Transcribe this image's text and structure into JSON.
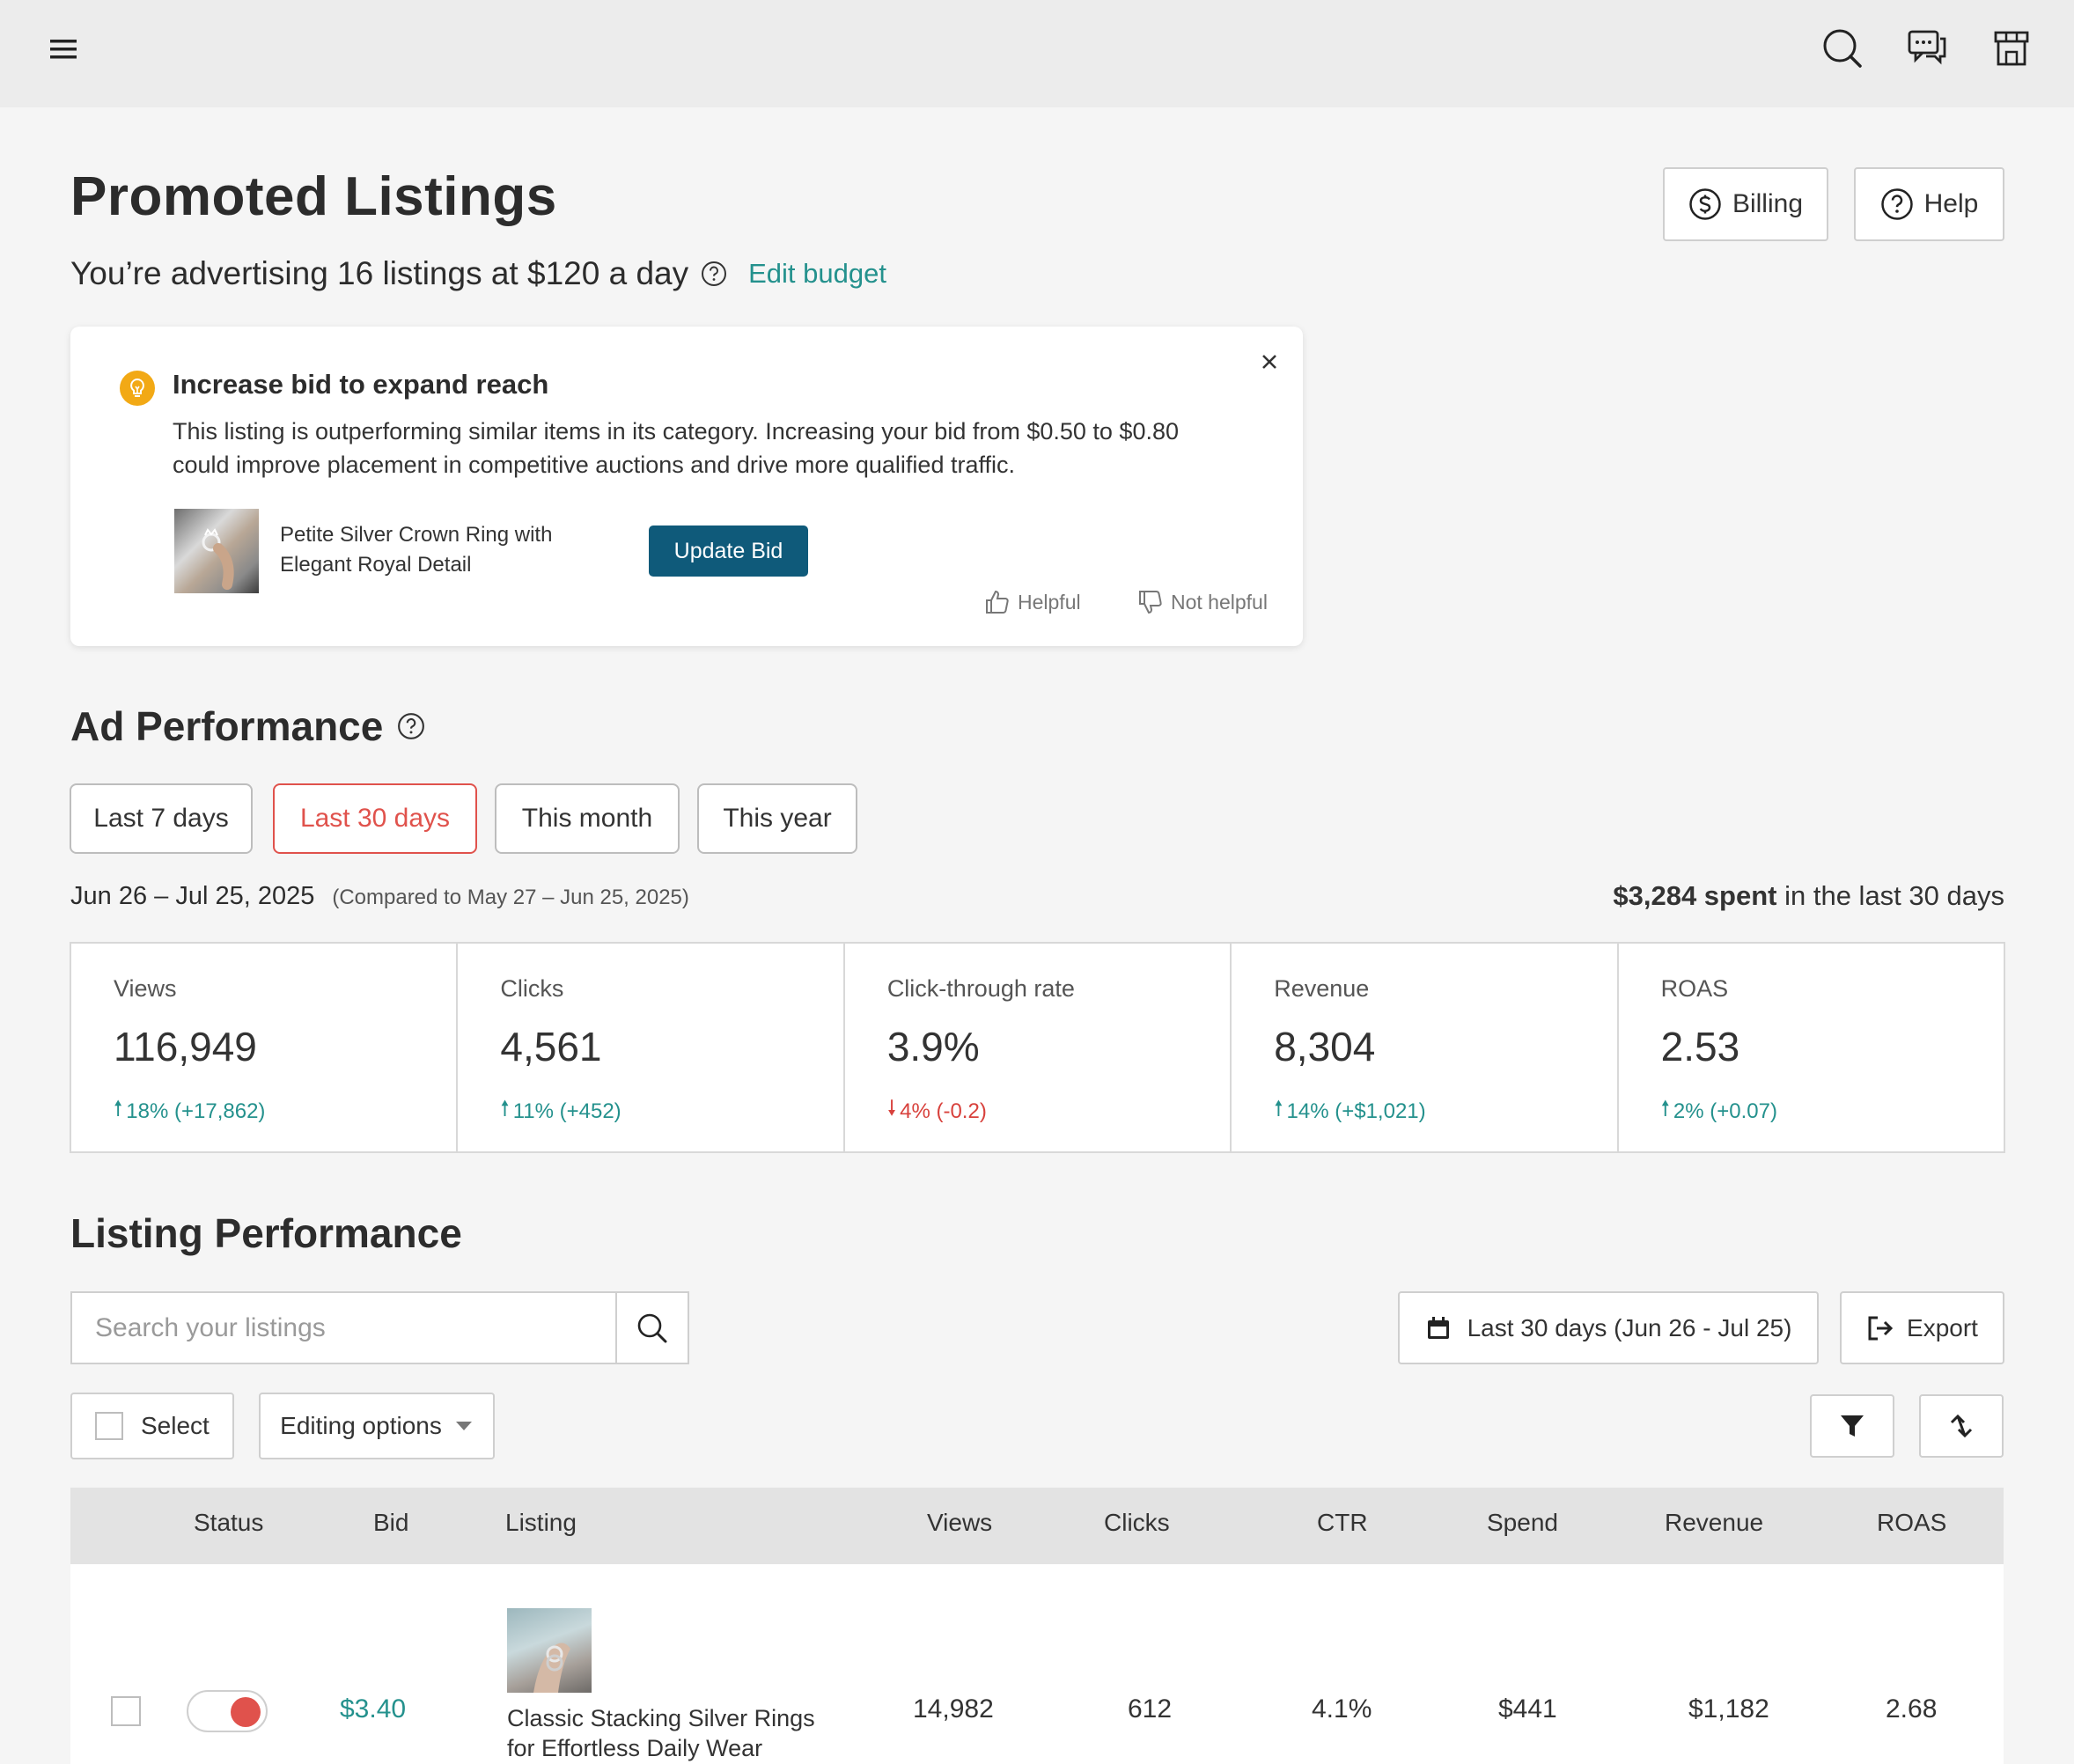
{
  "topbar": {
    "menu_icon": "hamburger-icon",
    "search_icon": "search-icon",
    "messages_icon": "chat-icon",
    "shop_icon": "shop-icon"
  },
  "header": {
    "title": "Promoted Listings",
    "subtitle": "You’re advertising 16 listings at $120 a day",
    "edit_budget": "Edit budget",
    "billing": "Billing",
    "help": "Help"
  },
  "tip": {
    "title": "Increase bid to expand reach",
    "body_line1": "This listing is outperforming similar items in its category. Increasing your bid from $0.50 to $0.80",
    "body_line2": "could improve placement in competitive auctions and drive more qualified traffic.",
    "listing_line1": "Petite Silver Crown Ring with",
    "listing_line2": "Elegant Royal Detail",
    "update_bid": "Update Bid",
    "helpful": "Helpful",
    "not_helpful": "Not helpful",
    "accent": "#f2a915"
  },
  "ad_performance": {
    "title": "Ad Performance",
    "ranges": [
      "Last 7 days",
      "Last 30 days",
      "This month",
      "This year"
    ],
    "active_range": "Last 30 days",
    "date_range": "Jun 26 – Jul 25, 2025",
    "compared": "(Compared to May 27 – Jun 25, 2025)",
    "spent_amount": "$3,284 spent",
    "spent_suffix": "in the last 30 days",
    "stats": [
      {
        "label": "Views",
        "value": "116,949",
        "change": "18% (+17,862)",
        "direction": "up"
      },
      {
        "label": "Clicks",
        "value": "4,561",
        "change": "11% (+452)",
        "direction": "up"
      },
      {
        "label": "Click-through rate",
        "value": "3.9%",
        "change": "4% (-0.2)",
        "direction": "down"
      },
      {
        "label": "Revenue",
        "value": "8,304",
        "change": "14% (+$1,021)",
        "direction": "up"
      },
      {
        "label": "ROAS",
        "value": "2.53",
        "change": "2% (+0.07)",
        "direction": "up"
      }
    ]
  },
  "listing_performance": {
    "title": "Listing Performance",
    "search_placeholder": "Search your listings",
    "date_filter": "Last 30 days (Jun 26 - Jul 25)",
    "export": "Export",
    "select": "Select",
    "editing_options": "Editing options",
    "columns": [
      "Status",
      "Bid",
      "Listing",
      "Views",
      "Clicks",
      "CTR",
      "Spend",
      "Revenue",
      "ROAS"
    ],
    "rows": [
      {
        "status_on": true,
        "bid": "$3.40",
        "listing_line1": "Classic Stacking Silver Rings",
        "listing_line2": "for Effortless Daily Wear",
        "views": "14,982",
        "clicks": "612",
        "ctr": "4.1%",
        "spend": "$441",
        "revenue": "$1,182",
        "roas": "2.68"
      }
    ]
  },
  "colors": {
    "accent_teal": "#24918d",
    "accent_red": "#e0524c",
    "primary_button": "#0f5a7a"
  }
}
